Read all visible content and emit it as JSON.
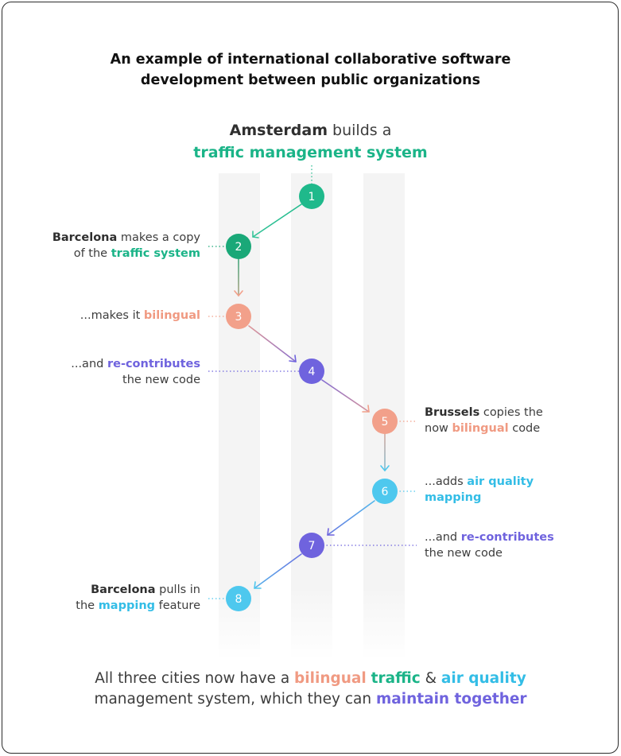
{
  "title": {
    "line1": "An example of international collaborative software",
    "line2": "development between public organizations"
  },
  "header": {
    "city": "Amsterdam",
    "text": " builds a",
    "system": "traffic management system"
  },
  "steps": [
    {
      "n": "1",
      "color": "#1fb98b"
    },
    {
      "n": "2",
      "color": "#1aa878"
    },
    {
      "n": "3",
      "color": "#f2a08a"
    },
    {
      "n": "4",
      "color": "#6f63de"
    },
    {
      "n": "5",
      "color": "#f2a08a"
    },
    {
      "n": "6",
      "color": "#4ec8ee"
    },
    {
      "n": "7",
      "color": "#6f63de"
    },
    {
      "n": "8",
      "color": "#4ec8ee"
    }
  ],
  "notes": {
    "n2": {
      "a": "Barcelona",
      "b": " makes a copy",
      "c": "of the ",
      "d": "traffic system"
    },
    "n3": {
      "a": "...makes it ",
      "b": "bilingual"
    },
    "n4": {
      "a": "...and ",
      "b": "re-contributes",
      "c": "the new code"
    },
    "n5": {
      "a": "Brussels",
      "b": " copies the",
      "c": "now ",
      "d": "bilingual",
      "e": " code"
    },
    "n6": {
      "a": "...adds ",
      "b": "air quality",
      "c": "mapping"
    },
    "n7": {
      "a": "...and ",
      "b": "re-contributes",
      "c": "the new code"
    },
    "n8": {
      "a": "Barcelona",
      "b": " pulls in",
      "c": "the ",
      "d": "mapping",
      "e": " feature"
    }
  },
  "footer": {
    "a": "All three cities now have a ",
    "b": "bilingual",
    "c": " ",
    "d": "traffic",
    "e": " & ",
    "f": "air quality",
    "g": "management system, which they can ",
    "h": "maintain together"
  }
}
